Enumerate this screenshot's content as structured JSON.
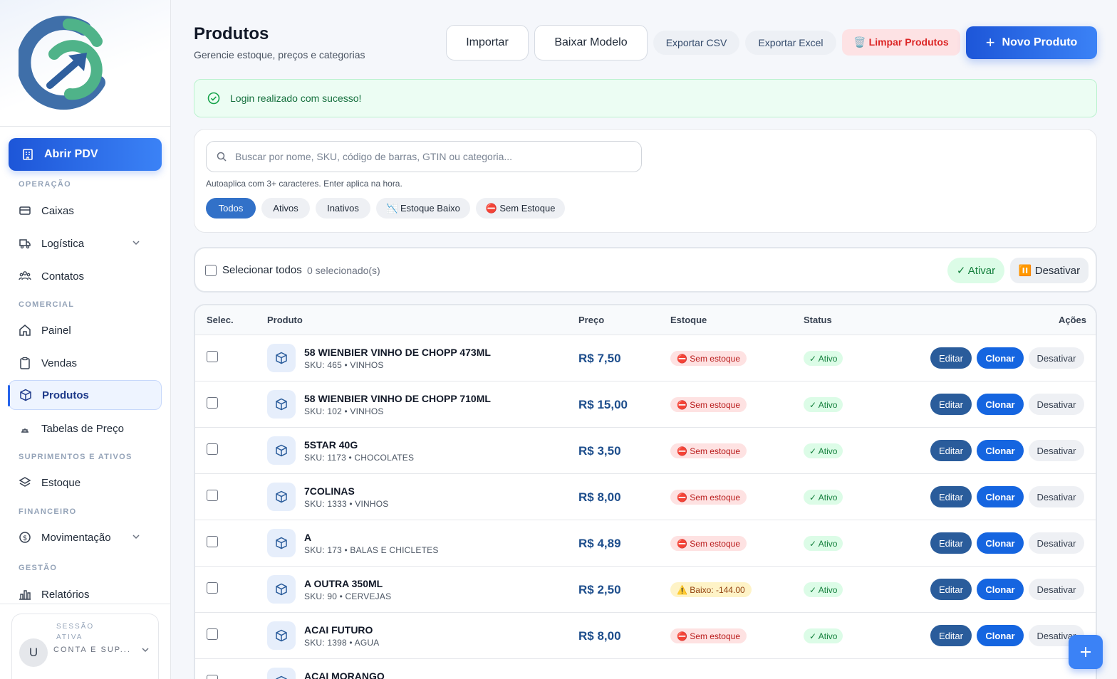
{
  "sidebar": {
    "pdv_label": "Abrir PDV",
    "sections": {
      "operacao": "OPERAÇÃO",
      "comercial": "COMERCIAL",
      "suprimentos": "SUPRIMENTOS E ATIVOS",
      "financeiro": "FINANCEIRO",
      "gestao": "GESTÃO"
    },
    "items": {
      "caixas": "Caixas",
      "logistica": "Logística",
      "contatos": "Contatos",
      "painel": "Painel",
      "vendas": "Vendas",
      "produtos": "Produtos",
      "tabelas": "Tabelas de Preço",
      "estoque": "Estoque",
      "movimentacao": "Movimentação",
      "relatorios": "Relatórios"
    },
    "session": {
      "label": "SESSÃO ATIVA",
      "avatar": "U",
      "user": "CONTA E SUP..."
    }
  },
  "header": {
    "title": "Produtos",
    "subtitle": "Gerencie estoque, preços e categorias",
    "buttons": {
      "importar": "Importar",
      "baixar": "Baixar Modelo",
      "csv": "Exportar CSV",
      "excel": "Exportar Excel",
      "limpar": "🗑️ Limpar Produtos",
      "novo": "Novo Produto"
    }
  },
  "alert": {
    "message": "Login realizado com sucesso!"
  },
  "filters": {
    "search_placeholder": "Buscar por nome, SKU, código de barras, GTIN ou categoria...",
    "hint": "Autoaplica com 3+ caracteres. Enter aplica na hora.",
    "chips": {
      "todos": "Todos",
      "ativos": "Ativos",
      "inativos": "Inativos",
      "baixo": "📉 Estoque Baixo",
      "sem": "⛔ Sem Estoque"
    }
  },
  "bulk": {
    "select_all": "Selecionar todos",
    "count": "0 selecionado(s)",
    "activate": "✓ Ativar",
    "deactivate": "⏸️ Desativar"
  },
  "table": {
    "headers": {
      "selec": "Selec.",
      "produto": "Produto",
      "preco": "Preço",
      "estoque": "Estoque",
      "status": "Status",
      "acoes": "Ações"
    },
    "actions": {
      "edit": "Editar",
      "clone": "Clonar",
      "deactivate": "Desativar"
    },
    "rows": [
      {
        "name": "58 WIENBIER VINHO DE CHOPP 473ML",
        "meta": "SKU: 465 • VINHOS",
        "price": "R$ 7,50",
        "stock": "⛔ Sem estoque",
        "status": "✓ Ativo"
      },
      {
        "name": "58 WIENBIER VINHO DE CHOPP 710ML",
        "meta": "SKU: 102 • VINHOS",
        "price": "R$ 15,00",
        "stock": "⛔ Sem estoque",
        "status": "✓ Ativo"
      },
      {
        "name": "5STAR 40G",
        "meta": "SKU: 1173 • CHOCOLATES",
        "price": "R$ 3,50",
        "stock": "⛔ Sem estoque",
        "status": "✓ Ativo"
      },
      {
        "name": "7COLINAS",
        "meta": "SKU: 1333 • VINHOS",
        "price": "R$ 8,00",
        "stock": "⛔ Sem estoque",
        "status": "✓ Ativo"
      },
      {
        "name": "A",
        "meta": "SKU: 173 • BALAS E CHICLETES",
        "price": "R$ 4,89",
        "stock": "⛔ Sem estoque",
        "status": "✓ Ativo"
      },
      {
        "name": "A OUTRA 350ML",
        "meta": "SKU: 90 • CERVEJAS",
        "price": "R$ 2,50",
        "stock": "⚠️ Baixo: -144.00",
        "status": "✓ Ativo"
      },
      {
        "name": "ACAI FUTURO",
        "meta": "SKU: 1398 • AGUA",
        "price": "R$ 8,00",
        "stock": "⛔ Sem estoque",
        "status": "✓ Ativo"
      },
      {
        "name": "ACAI MORANGO",
        "meta": "",
        "price": "",
        "stock": "",
        "status": ""
      }
    ]
  }
}
